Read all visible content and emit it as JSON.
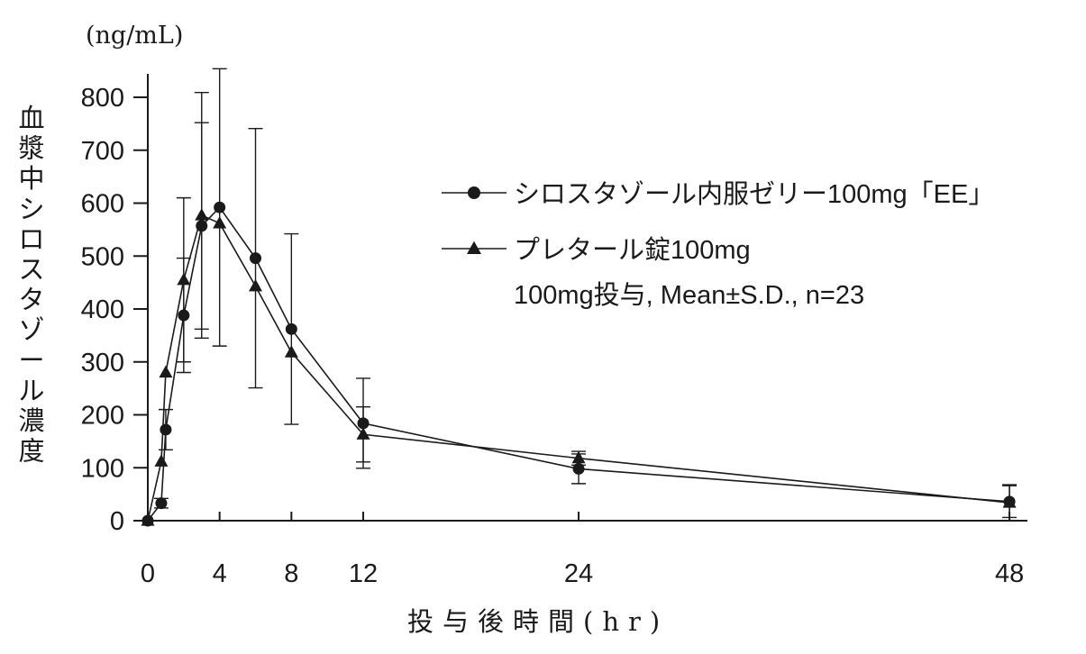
{
  "chart_data": {
    "type": "line",
    "title": "",
    "unit_label": "(ng/mL)",
    "ylabel": "血漿中シロスタゾール濃度",
    "xlabel": "投与後時間(hr)",
    "xticks": [
      0,
      4,
      8,
      12,
      24,
      48
    ],
    "yticks": [
      0,
      100,
      200,
      300,
      400,
      500,
      600,
      700,
      800
    ],
    "xlim": [
      0,
      49
    ],
    "ylim": [
      0,
      800
    ],
    "grid": false,
    "legend_position": "upper-right",
    "dose_note": "100mg投与, Mean±S.D., n=23",
    "series": [
      {
        "name": "シロスタゾール内服ゼリー100mg「EE」",
        "marker": "circle",
        "color": "#1a1a1a",
        "points": [
          {
            "x": 0,
            "y": 0
          },
          {
            "x": 0.75,
            "y": 33,
            "sd": 9
          },
          {
            "x": 1,
            "y": 172,
            "sd": 38
          },
          {
            "x": 2,
            "y": 388,
            "sd": 108
          },
          {
            "x": 3,
            "y": 557,
            "sd": 195
          },
          {
            "x": 4,
            "y": 592,
            "sd": 262
          },
          {
            "x": 6,
            "y": 496,
            "sd": 245
          },
          {
            "x": 8,
            "y": 362,
            "sd": 180
          },
          {
            "x": 12,
            "y": 184,
            "sd": 85
          },
          {
            "x": 24,
            "y": 98,
            "sd": 28
          },
          {
            "x": 48,
            "y": 36,
            "sd": 30
          }
        ]
      },
      {
        "name": "プレタール錠100mg",
        "marker": "triangle",
        "color": "#1a1a1a",
        "points": [
          {
            "x": 0,
            "y": 0
          },
          {
            "x": 0.75,
            "y": 112,
            "sd": 0
          },
          {
            "x": 1,
            "y": 280,
            "sd": 0
          },
          {
            "x": 2,
            "y": 455,
            "sd": 155
          },
          {
            "x": 3,
            "y": 577,
            "sd": 232
          },
          {
            "x": 4,
            "y": 562,
            "sd": 0
          },
          {
            "x": 6,
            "y": 443,
            "sd": 0
          },
          {
            "x": 8,
            "y": 318,
            "sd": 0
          },
          {
            "x": 12,
            "y": 163,
            "sd": 52
          },
          {
            "x": 24,
            "y": 118,
            "sd": 13
          },
          {
            "x": 48,
            "y": 34,
            "sd": 34
          }
        ]
      }
    ]
  }
}
